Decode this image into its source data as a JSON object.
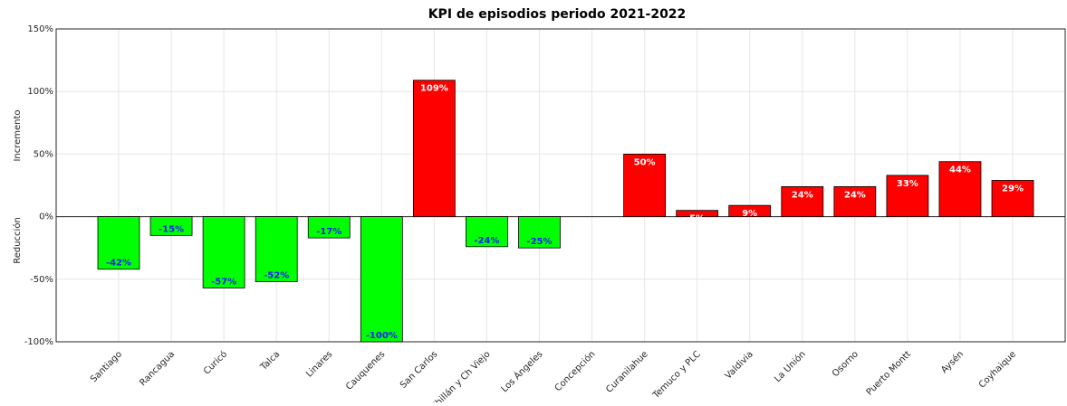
{
  "chart_data": {
    "type": "bar",
    "title": "KPI de episodios periodo 2021-2022",
    "y_label_top": "Incremento",
    "y_label_bottom": "Reducción",
    "categories": [
      "Santiago",
      "Rancagua",
      "Curicó",
      "Talca",
      "Linares",
      "Cauquenes",
      "San Carlos",
      "Chillán y Ch Viejo",
      "Los Ángeles",
      "Concepción",
      "Curanilahue",
      "Temuco y PLC",
      "Valdivia",
      "La Unión",
      "Osorno",
      "Puerto Montt",
      "Aysén",
      "Coyhaique"
    ],
    "values": [
      -42,
      -15,
      -57,
      -52,
      -17,
      -100,
      109,
      -24,
      -25,
      0,
      50,
      5,
      9,
      24,
      24,
      33,
      44,
      29
    ],
    "value_labels": [
      "-42%",
      "-15%",
      "-57%",
      "-52%",
      "-17%",
      "-100%",
      "109%",
      "-24%",
      "-25%",
      null,
      "50%",
      "5%",
      "9%",
      "24%",
      "24%",
      "33%",
      "44%",
      "29%"
    ],
    "positive_color": "#ff0000",
    "negative_color": "#00ff00",
    "ylim": [
      -100,
      150
    ],
    "yticks": [
      {
        "value": -100,
        "label": "-100%"
      },
      {
        "value": -50,
        "label": "-50%"
      },
      {
        "value": 0,
        "label": "0%"
      },
      {
        "value": 50,
        "label": "50%"
      },
      {
        "value": 100,
        "label": "100%"
      },
      {
        "value": 150,
        "label": "150%"
      }
    ],
    "grid": true
  }
}
